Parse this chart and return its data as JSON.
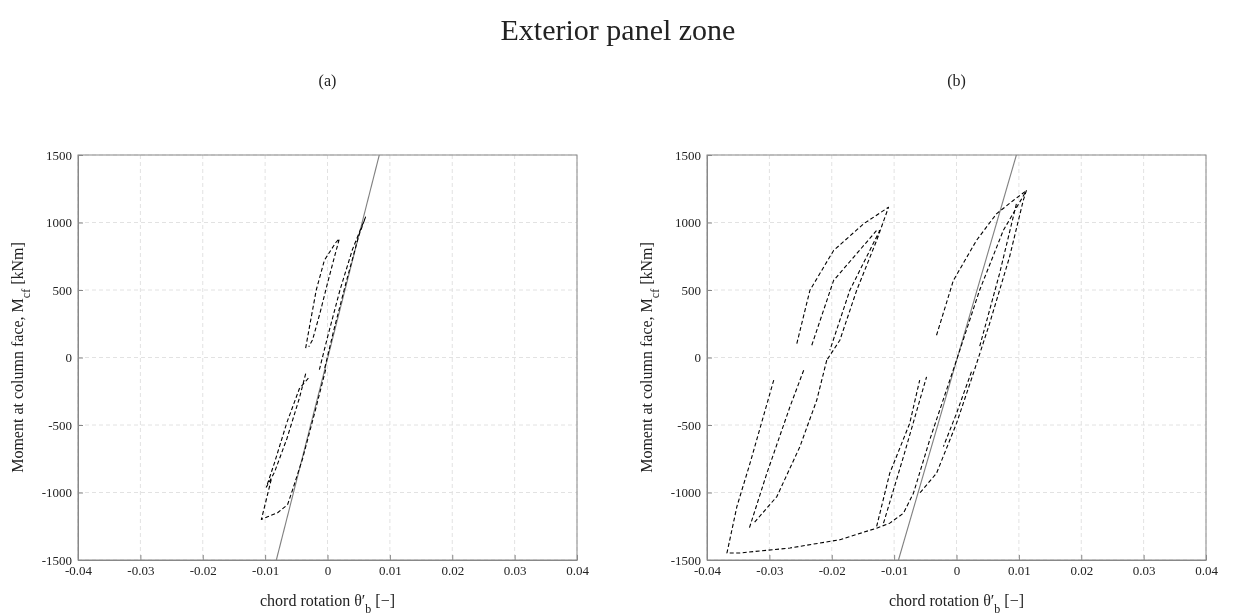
{
  "chart_data": [
    {
      "type": "line",
      "title": "Exterior panel zone",
      "subtitle": "(a)",
      "xlabel": "chord rotation θ′$_{b}$ [−]",
      "ylabel": "Moment at column face, M$_{cf}$ [kNm]",
      "xlim": [
        -0.04,
        0.04
      ],
      "xticks": [
        -0.04,
        -0.03,
        -0.02,
        -0.01,
        0,
        0.01,
        0.02,
        0.03,
        0.04
      ],
      "ylim": [
        -1500,
        1500
      ],
      "yticks": [
        -1500,
        -1000,
        -500,
        0,
        500,
        1000,
        1500
      ],
      "grid": true,
      "series": [
        {
          "color": "#000000",
          "line_style": "dashed",
          "x": [
            -0.0035,
            -0.0028,
            -0.0018,
            -0.0005,
            0.0013,
            0.0019,
            0.0012,
            0.0,
            -0.0012,
            -0.0024,
            -0.003,
            null,
            -0.0013,
            0.0,
            0.002,
            0.004,
            0.0061,
            0.005,
            0.003,
            0.001,
            -0.0005,
            null,
            -0.0035,
            -0.0045,
            -0.0065,
            -0.0085,
            -0.0098,
            -0.0085,
            -0.0065,
            -0.0045,
            -0.003,
            null,
            -0.0003,
            -0.002,
            -0.004,
            -0.0056,
            -0.0064,
            -0.008,
            -0.0096,
            -0.0106,
            -0.0098,
            -0.009
          ],
          "values": [
            70,
            250,
            500,
            720,
            850,
            880,
            760,
            550,
            330,
            130,
            80,
            null,
            -90,
            150,
            500,
            800,
            1040,
            900,
            560,
            200,
            -90,
            null,
            -120,
            -300,
            -600,
            -850,
            -960,
            -780,
            -480,
            -230,
            -150,
            null,
            -90,
            -400,
            -750,
            -980,
            -1090,
            -1150,
            -1180,
            -1200,
            -1050,
            -900
          ]
        },
        {
          "color": "#808080",
          "line_style": "solid",
          "x": [
            -0.0082,
            0.0083
          ],
          "values": [
            -1500,
            1500
          ]
        }
      ]
    },
    {
      "type": "line",
      "subtitle": "(b)",
      "xlabel": "chord rotation θ′$_{b}$ [−]",
      "ylabel": "Moment at column face, M$_{cf}$ [kNm]",
      "xlim": [
        -0.04,
        0.04
      ],
      "xticks": [
        -0.04,
        -0.03,
        -0.02,
        -0.01,
        0,
        0.01,
        0.02,
        0.03,
        0.04
      ],
      "ylim": [
        -1500,
        1500
      ],
      "yticks": [
        -1500,
        -1000,
        -500,
        0,
        500,
        1000,
        1500
      ],
      "grid": true,
      "series": [
        {
          "color": "#000000",
          "line_style": "dashed",
          "x": [
            -0.0256,
            -0.0235,
            -0.0197,
            -0.0149,
            -0.0109,
            -0.0128,
            -0.016,
            -0.0187,
            -0.0208,
            null,
            -0.0232,
            -0.0197,
            -0.0128,
            -0.0123,
            -0.0171,
            -0.0203,
            null,
            -0.0293,
            -0.0331,
            -0.0352,
            -0.0368,
            -0.0347,
            -0.0267,
            -0.0187,
            -0.0128,
            -0.0107,
            -0.0085,
            -0.0069,
            -0.0043,
            0,
            0.0037,
            0.0075,
            0.0112,
            0.0107,
            0.0085,
            0.0053,
            0.0027,
            0,
            -0.0032,
            -0.0059,
            null,
            -0.0245,
            -0.0267,
            -0.0304,
            -0.0333,
            null,
            -0.0208,
            -0.0224,
            -0.0251,
            -0.0288,
            -0.0325,
            null,
            -0.0128,
            -0.0107,
            -0.0075,
            -0.0059,
            null,
            -0.0117,
            -0.0085,
            -0.0048,
            null,
            -0.0032,
            -0.0005,
            0.0032,
            0.0064,
            0.0091,
            0.0112,
            null,
            0.0096,
            0.0069,
            0.0037,
            null,
            0.0024,
            0,
            -0.0021
          ],
          "values": [
            103,
            498,
            793,
            990,
            1113,
            867,
            498,
            128,
            -20,
            null,
            91,
            571,
            941,
            941,
            498,
            54,
            null,
            -167,
            -783,
            -1103,
            -1448,
            -1448,
            -1411,
            -1350,
            -1264,
            -1227,
            -1153,
            -1005,
            -611,
            -20,
            498,
            941,
            1236,
            1163,
            744,
            251,
            -118,
            -488,
            -857,
            -1005,
            null,
            -94,
            -365,
            -857,
            -1276,
            null,
            -20,
            -315,
            -660,
            -1030,
            -1227,
            null,
            -1251,
            -857,
            -488,
            -167,
            null,
            -1227,
            -734,
            -143,
            null,
            165,
            571,
            867,
            1064,
            1163,
            1236,
            null,
            1138,
            621,
            79,
            null,
            -106,
            -414,
            -660
          ]
        },
        {
          "color": "#808080",
          "line_style": "solid",
          "x": [
            -0.0093,
            0.0096
          ],
          "values": [
            -1500,
            1500
          ]
        }
      ]
    }
  ]
}
